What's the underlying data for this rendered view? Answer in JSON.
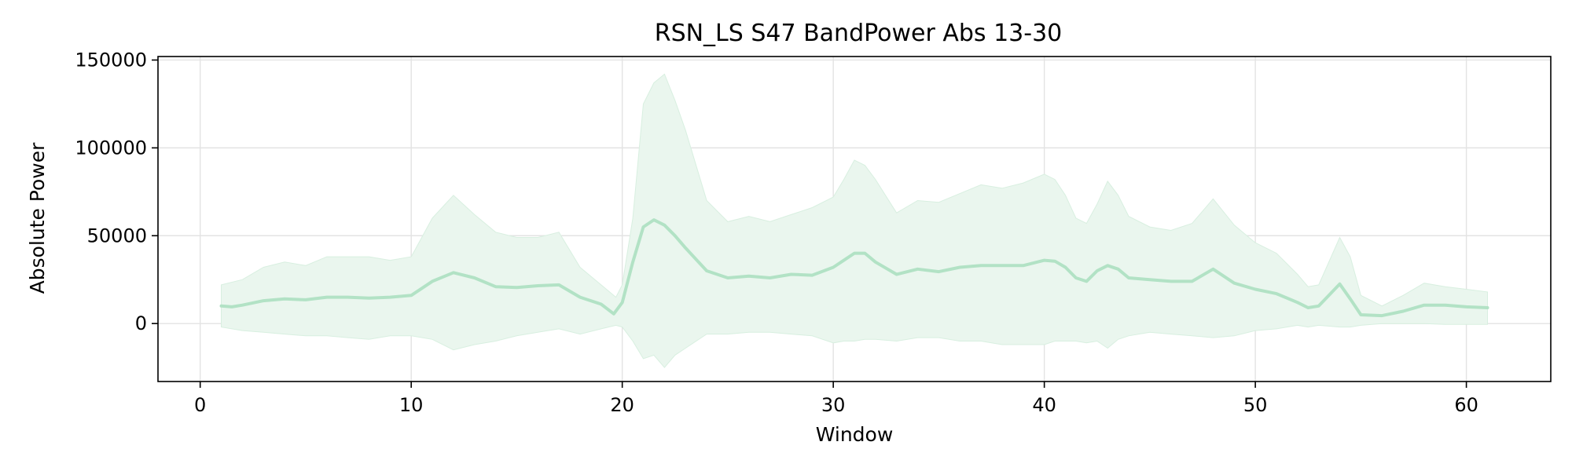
{
  "chart_data": {
    "type": "area",
    "title": "RSN_LS S47 BandPower Abs 13-30",
    "xlabel": "Window",
    "ylabel": "Absolute Power",
    "xlim": [
      -2,
      64
    ],
    "ylim": [
      -33000,
      152000
    ],
    "xticks": [
      0,
      10,
      20,
      30,
      40,
      50,
      60
    ],
    "yticks": [
      0,
      50000,
      100000,
      150000
    ],
    "grid": true,
    "colors": {
      "line": "#b2e2c5",
      "band": "#eaf6ee",
      "band_edge": "#d8efe0"
    },
    "series": [
      {
        "role": "mean",
        "x": [
          1,
          1.5,
          2,
          3,
          4,
          5,
          6,
          7,
          8,
          9,
          10,
          11,
          12,
          13,
          14,
          15,
          16,
          17,
          18,
          19,
          19.6,
          20,
          20.5,
          21,
          21.5,
          22,
          22.5,
          23,
          24,
          25,
          26,
          27,
          28,
          29,
          30,
          30.5,
          31,
          31.5,
          32,
          33,
          34,
          35,
          36,
          37,
          38,
          39,
          40,
          40.5,
          41,
          41.5,
          42,
          42.5,
          43,
          43.5,
          44,
          45,
          46,
          47,
          48,
          49,
          50,
          51,
          52,
          52.5,
          53,
          54,
          54.5,
          55,
          56,
          57,
          58,
          59,
          60,
          61
        ],
        "y": [
          10000,
          9500,
          10500,
          13000,
          14000,
          13500,
          15000,
          15000,
          14500,
          15000,
          16000,
          24000,
          29000,
          26000,
          21000,
          20500,
          21500,
          22000,
          15000,
          11000,
          5500,
          12000,
          35000,
          55000,
          59000,
          56000,
          50000,
          43000,
          30000,
          26000,
          27000,
          26000,
          28000,
          27500,
          32000,
          36000,
          40000,
          40000,
          35000,
          28000,
          31000,
          29500,
          32000,
          33000,
          33000,
          33000,
          36000,
          35500,
          32000,
          26000,
          24000,
          30000,
          33000,
          31000,
          26000,
          25000,
          24000,
          24000,
          31000,
          23000,
          19500,
          17000,
          12000,
          9000,
          10000,
          22500,
          14000,
          5000,
          4500,
          7000,
          10500,
          10500,
          9500,
          9000
        ]
      },
      {
        "role": "upper",
        "x": [
          1,
          2,
          3,
          4,
          5,
          6,
          7,
          8,
          9,
          10,
          11,
          12,
          13,
          14,
          15,
          16,
          17,
          18,
          19,
          19.7,
          20,
          20.5,
          21,
          21.5,
          22,
          22.5,
          23,
          24,
          25,
          26,
          27,
          28,
          29,
          30,
          30.5,
          31,
          31.5,
          32,
          33,
          34,
          35,
          36,
          37,
          38,
          39,
          40,
          40.5,
          41,
          41.5,
          42,
          42.5,
          43,
          43.5,
          44,
          45,
          46,
          47,
          48,
          49,
          50,
          51,
          52,
          52.5,
          53,
          54,
          54.5,
          55,
          56,
          57,
          58,
          59,
          60,
          61
        ],
        "y": [
          22000,
          25000,
          32000,
          35000,
          33000,
          38000,
          38000,
          38000,
          36000,
          38000,
          60000,
          73000,
          62000,
          52000,
          49000,
          49000,
          52000,
          32000,
          22000,
          15000,
          22000,
          60000,
          125000,
          137000,
          142000,
          127000,
          110000,
          70000,
          58000,
          61000,
          58000,
          62000,
          66000,
          72000,
          82000,
          93000,
          90000,
          82000,
          63000,
          70000,
          69000,
          74000,
          79000,
          77000,
          80000,
          85000,
          82000,
          73000,
          60000,
          57000,
          68000,
          81000,
          73000,
          61000,
          55000,
          53000,
          57000,
          71000,
          56000,
          46000,
          40000,
          28000,
          21000,
          22000,
          49000,
          38000,
          16000,
          10000,
          16000,
          23000,
          21000,
          19500,
          18000
        ]
      },
      {
        "role": "lower",
        "x": [
          1,
          2,
          3,
          4,
          5,
          6,
          7,
          8,
          9,
          10,
          11,
          12,
          13,
          14,
          15,
          16,
          17,
          18,
          19,
          19.7,
          20,
          20.5,
          21,
          21.5,
          22,
          22.5,
          23,
          24,
          25,
          26,
          27,
          28,
          29,
          30,
          30.5,
          31,
          31.5,
          32,
          33,
          34,
          35,
          36,
          37,
          38,
          39,
          40,
          40.5,
          41,
          41.5,
          42,
          42.5,
          43,
          43.5,
          44,
          45,
          46,
          47,
          48,
          49,
          50,
          51,
          52,
          52.5,
          53,
          54,
          54.5,
          55,
          56,
          57,
          58,
          59,
          60,
          61
        ],
        "y": [
          -2000,
          -4000,
          -5000,
          -6000,
          -7000,
          -7000,
          -8000,
          -9000,
          -7000,
          -7000,
          -9000,
          -15000,
          -12000,
          -10000,
          -7000,
          -5000,
          -3000,
          -6000,
          -3000,
          -1000,
          -2000,
          -10000,
          -20000,
          -18000,
          -25000,
          -18000,
          -14000,
          -6000,
          -6000,
          -5000,
          -5000,
          -6000,
          -7000,
          -11000,
          -10000,
          -10000,
          -9000,
          -9000,
          -10000,
          -8000,
          -8000,
          -10000,
          -10000,
          -12000,
          -12000,
          -12000,
          -10000,
          -10000,
          -10000,
          -11000,
          -10000,
          -14000,
          -9000,
          -7000,
          -5000,
          -6000,
          -7000,
          -8000,
          -7000,
          -4000,
          -3000,
          -1000,
          -2000,
          -1000,
          -2000,
          -2000,
          -1000,
          0,
          0,
          0,
          -500,
          -500,
          -500
        ]
      }
    ]
  }
}
